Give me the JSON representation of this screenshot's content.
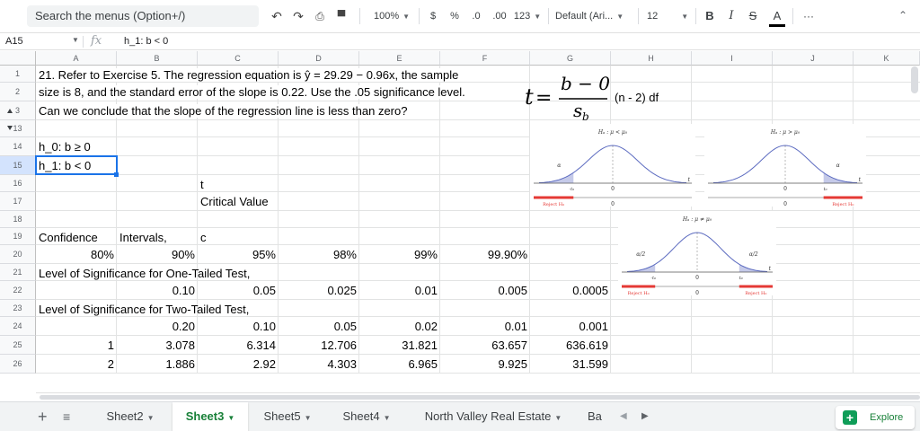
{
  "toolbar": {
    "search_placeholder": "Search the menus (Option+/)",
    "zoom": "100%",
    "currency": "$",
    "percent": "%",
    "decrease_decimal": ".0",
    "increase_decimal": ".00",
    "more_formats": "123",
    "font": "Default (Ari...",
    "font_size": "12",
    "bold": "B",
    "italic": "I",
    "strike": "S",
    "text_color": "A",
    "more": "···",
    "accent_color": "#1a73e8"
  },
  "formula_bar": {
    "cell_ref": "A15",
    "fx": "fx",
    "content": "h_1: b < 0"
  },
  "columns": [
    "A",
    "B",
    "C",
    "D",
    "E",
    "F",
    "G",
    "H",
    "I",
    "J",
    "K"
  ],
  "rows": [
    "1",
    "2",
    "3",
    "13",
    "14",
    "15",
    "16",
    "17",
    "18",
    "19",
    "20",
    "21",
    "22",
    "23",
    "24",
    "25",
    "26"
  ],
  "cells": {
    "r1": "21. Refer to Exercise 5. The regression equation is ŷ = 29.29 − 0.96x, the sample",
    "r2": "size is 8, and the standard error of the slope is 0.22. Use the .05 significance level.",
    "r3": "Can we conclude that the slope of the regression line is less than zero?",
    "a14": "h_0: b ≥ 0",
    "a15": "h_1: b < 0",
    "c16": "t",
    "c17": "Critical Value",
    "a19": "Confidence",
    "b19": "Intervals,",
    "c19": "c",
    "r20": [
      "80%",
      "90%",
      "95%",
      "98%",
      "99%",
      "99.90%"
    ],
    "a21": "Level of Significance for One-Tailed Test,",
    "r22": [
      "0.10",
      "0.05",
      "0.025",
      "0.01",
      "0.005",
      "0.0005"
    ],
    "a23": "Level of Significance for Two-Tailed Test,",
    "r24": [
      "0.20",
      "0.10",
      "0.05",
      "0.02",
      "0.01",
      "0.001"
    ],
    "r25": [
      "1",
      "3.078",
      "6.314",
      "12.706",
      "31.821",
      "63.657",
      "636.619"
    ],
    "r26": [
      "2",
      "1.886",
      "2.92",
      "4.303",
      "6.965",
      "9.925",
      "31.599"
    ]
  },
  "formula_image": {
    "t": "t",
    "eq": "=",
    "numerator": "b − 0",
    "denominator": "s",
    "subscript": "b",
    "df_note": "(n - 2) df"
  },
  "distribution_images": {
    "left_title": "Hₐ : μ < μ₀",
    "right_title": "Hₐ : μ > μ₀",
    "two_title": "Hₐ : μ ≠ μ₀",
    "alpha": "α",
    "alpha_half": "α/2",
    "zero": "0",
    "neg_t0": "-t₀",
    "t0": "t₀",
    "x_axis": "t",
    "reject": "Reject H₀",
    "curve_color": "#5c6bc0",
    "reject_color": "#e53935"
  },
  "sheet_tabs": [
    "Sheet2",
    "Sheet3",
    "Sheet5",
    "Sheet4",
    "North Valley Real Estate",
    "Ba"
  ],
  "active_tab": "Sheet3",
  "explore_label": "Explore",
  "explore_icon_glyph": "+"
}
